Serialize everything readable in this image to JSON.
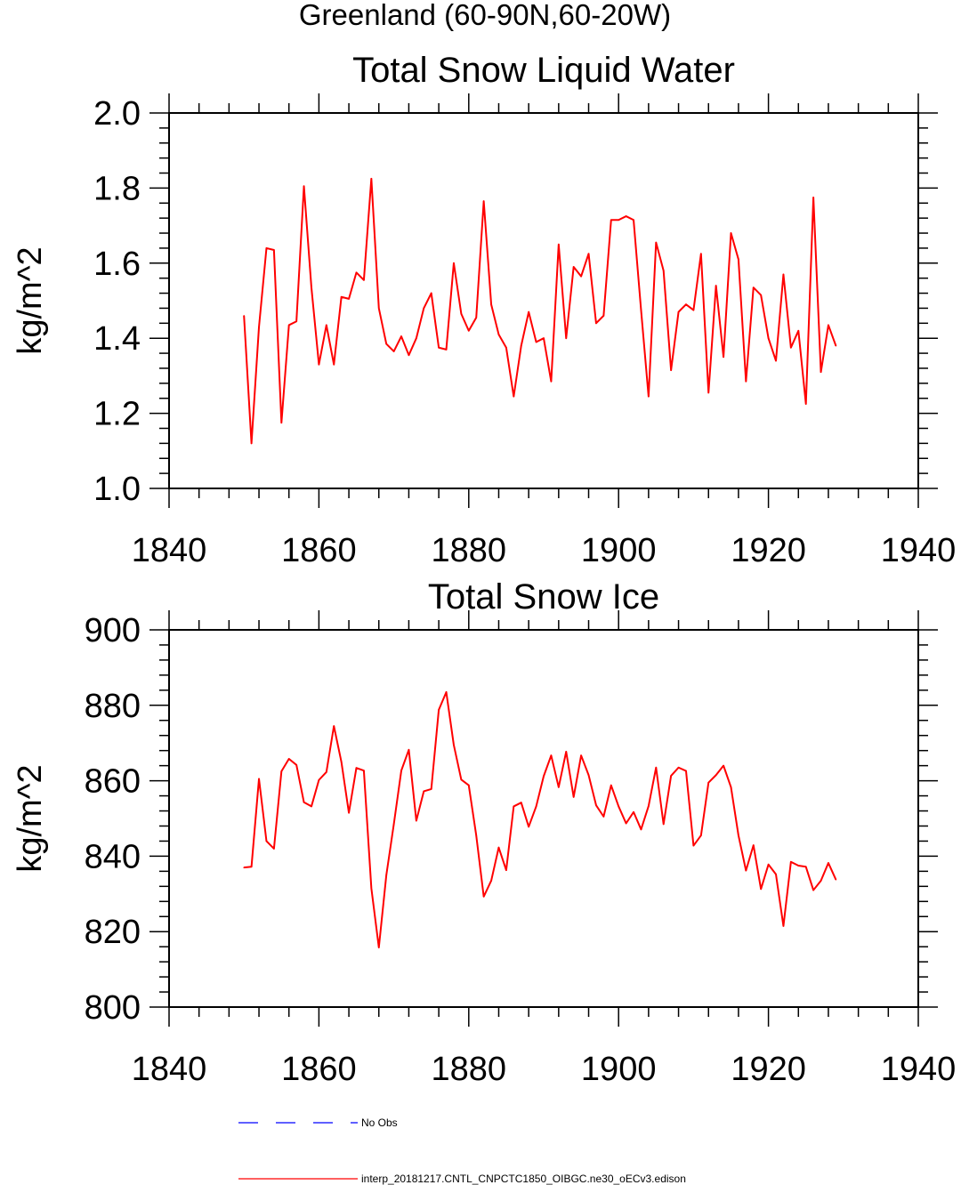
{
  "figure_title": "Greenland (60-90N,60-20W)",
  "colors": {
    "model": "#ff0000",
    "obs": "#0000ff",
    "axis": "#000000"
  },
  "legend": [
    {
      "label": "No Obs",
      "style": "dashed",
      "color": "#0000ff"
    },
    {
      "label": "interp_20181217.CNTL_CNPCTC1850_OIBGC.ne30_oECv3.edison",
      "style": "solid",
      "color": "#ff0000"
    }
  ],
  "chart_data": [
    {
      "type": "line",
      "title": "Total Snow Liquid Water",
      "xlabel": "",
      "ylabel": "kg/m^2",
      "xlim": [
        1840,
        1940
      ],
      "ylim": [
        1.0,
        2.0
      ],
      "xticks": [
        "1840",
        "1860",
        "1880",
        "1900",
        "1920",
        "1940"
      ],
      "yticks": [
        "1.0",
        "1.2",
        "1.4",
        "1.6",
        "1.8",
        "2.0"
      ],
      "ytick_values": [
        1.0,
        1.2,
        1.4,
        1.6,
        1.8,
        2.0
      ],
      "ymajor_step": 0.2,
      "yminor_step": 0.04,
      "grid": false,
      "series": [
        {
          "name": "interp_20181217.CNTL_CNPCTC1850_OIBGC.ne30_oECv3.edison",
          "x": [
            1850,
            1851,
            1852,
            1853,
            1854,
            1855,
            1856,
            1857,
            1858,
            1859,
            1860,
            1861,
            1862,
            1863,
            1864,
            1865,
            1866,
            1867,
            1868,
            1869,
            1870,
            1871,
            1872,
            1873,
            1874,
            1875,
            1876,
            1877,
            1878,
            1879,
            1880,
            1881,
            1882,
            1883,
            1884,
            1885,
            1886,
            1887,
            1888,
            1889,
            1890,
            1891,
            1892,
            1893,
            1894,
            1895,
            1896,
            1897,
            1898,
            1899,
            1900,
            1901,
            1902,
            1903,
            1904,
            1905,
            1906,
            1907,
            1908,
            1909,
            1910,
            1911,
            1912,
            1913,
            1914,
            1915,
            1916,
            1917,
            1918,
            1919,
            1920,
            1921,
            1922,
            1923,
            1924,
            1925,
            1926,
            1927,
            1928,
            1929
          ],
          "values": [
            1.46,
            1.12,
            1.43,
            1.64,
            1.635,
            1.175,
            1.435,
            1.445,
            1.805,
            1.535,
            1.33,
            1.435,
            1.33,
            1.51,
            1.505,
            1.575,
            1.555,
            1.825,
            1.48,
            1.385,
            1.365,
            1.405,
            1.355,
            1.4,
            1.48,
            1.52,
            1.375,
            1.37,
            1.6,
            1.465,
            1.42,
            1.455,
            1.765,
            1.49,
            1.41,
            1.375,
            1.245,
            1.38,
            1.47,
            1.39,
            1.4,
            1.285,
            1.65,
            1.4,
            1.59,
            1.565,
            1.625,
            1.44,
            1.46,
            1.715,
            1.715,
            1.725,
            1.715,
            1.475,
            1.245,
            1.655,
            1.58,
            1.315,
            1.47,
            1.49,
            1.475,
            1.625,
            1.255,
            1.54,
            1.35,
            1.68,
            1.61,
            1.285,
            1.535,
            1.515,
            1.4,
            1.34,
            1.57,
            1.375,
            1.42,
            1.225,
            1.775,
            1.31,
            1.435,
            1.38
          ]
        }
      ]
    },
    {
      "type": "line",
      "title": "Total Snow Ice",
      "xlabel": "",
      "ylabel": "kg/m^2",
      "xlim": [
        1840,
        1940
      ],
      "ylim": [
        800,
        900
      ],
      "xticks": [
        "1840",
        "1860",
        "1880",
        "1900",
        "1920",
        "1940"
      ],
      "yticks": [
        "800",
        "820",
        "840",
        "860",
        "880",
        "900"
      ],
      "ytick_values": [
        800,
        820,
        840,
        860,
        880,
        900
      ],
      "ymajor_step": 20,
      "yminor_step": 4,
      "grid": false,
      "series": [
        {
          "name": "interp_20181217.CNTL_CNPCTC1850_OIBGC.ne30_oECv3.edison",
          "x": [
            1850,
            1851,
            1852,
            1853,
            1854,
            1855,
            1856,
            1857,
            1858,
            1859,
            1860,
            1861,
            1862,
            1863,
            1864,
            1865,
            1866,
            1867,
            1868,
            1869,
            1870,
            1871,
            1872,
            1873,
            1874,
            1875,
            1876,
            1877,
            1878,
            1879,
            1880,
            1881,
            1882,
            1883,
            1884,
            1885,
            1886,
            1887,
            1888,
            1889,
            1890,
            1891,
            1892,
            1893,
            1894,
            1895,
            1896,
            1897,
            1898,
            1899,
            1900,
            1901,
            1902,
            1903,
            1904,
            1905,
            1906,
            1907,
            1908,
            1909,
            1910,
            1911,
            1912,
            1913,
            1914,
            1915,
            1916,
            1917,
            1918,
            1919,
            1920,
            1921,
            1922,
            1923,
            1924,
            1925,
            1926,
            1927,
            1928,
            1929
          ],
          "values": [
            837,
            837.2,
            860.5,
            844,
            842,
            862.5,
            865.8,
            864.2,
            854.3,
            853.2,
            860.2,
            862.3,
            874.5,
            865,
            851.5,
            863.4,
            862.7,
            831.5,
            815.8,
            835,
            848.5,
            862.7,
            868.2,
            849.4,
            857.2,
            857.8,
            878.8,
            883.5,
            869.5,
            860.3,
            858.8,
            845.5,
            829.3,
            833.5,
            842.3,
            836.3,
            853.2,
            854.2,
            847.8,
            853.2,
            861.2,
            866.7,
            858.3,
            867.7,
            855.7,
            866.7,
            861.5,
            853.5,
            850.5,
            858.8,
            853.2,
            848.7,
            851.7,
            847.1,
            853.3,
            863.5,
            848.5,
            861.3,
            863.5,
            862.6,
            842.8,
            845.5,
            859.5,
            861.5,
            864,
            858.3,
            845.5,
            836.2,
            842.9,
            831.3,
            837.8,
            835.2,
            821.5,
            838.5,
            837.5,
            837.2,
            831,
            833.5,
            838.2,
            833.8
          ]
        }
      ]
    }
  ]
}
